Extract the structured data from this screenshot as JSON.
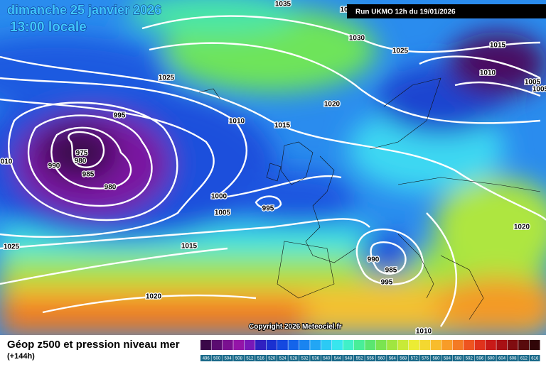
{
  "header": {
    "date": "dimanche 25 janvier 2026",
    "time": "13:00 locale",
    "run": "Run UKMO 12h du 19/01/2026"
  },
  "isobar_labels": [
    "1035",
    "10",
    "1030",
    "1025",
    "1015",
    "1010",
    "1005",
    "1005",
    "1025",
    "1020",
    "995",
    "1010",
    "1015",
    "975",
    "980",
    "990",
    "985",
    "980",
    "010",
    "1000",
    "995",
    "1005",
    "1025",
    "1015",
    "1020",
    "990",
    "985",
    "995",
    "1020",
    "1010"
  ],
  "copyright": "Copyright 2026 Meteociel.fr",
  "footer": {
    "title": "Géop z500 et pression niveau mer",
    "lead": "(+144h)"
  },
  "colorbar": {
    "values": [
      496,
      500,
      504,
      508,
      512,
      516,
      520,
      524,
      528,
      532,
      536,
      540,
      544,
      548,
      552,
      556,
      560,
      564,
      568,
      572,
      576,
      580,
      584,
      588,
      592,
      596,
      600,
      604,
      608,
      612,
      616
    ],
    "colors": [
      "#3a0848",
      "#5a0c70",
      "#7a1090",
      "#9414a8",
      "#7818b8",
      "#3020c0",
      "#1a30d0",
      "#1448e0",
      "#1464ea",
      "#1a84f0",
      "#22a6f4",
      "#2ccaf4",
      "#38e6ee",
      "#40f0c8",
      "#48ee98",
      "#5ae670",
      "#7ae450",
      "#a0e640",
      "#c8ea38",
      "#ecec34",
      "#f4d830",
      "#f8bc2c",
      "#f89c28",
      "#f47a24",
      "#ee5420",
      "#e0321c",
      "#c81a18",
      "#a81014",
      "#800c10",
      "#580a0c",
      "#300608"
    ]
  }
}
